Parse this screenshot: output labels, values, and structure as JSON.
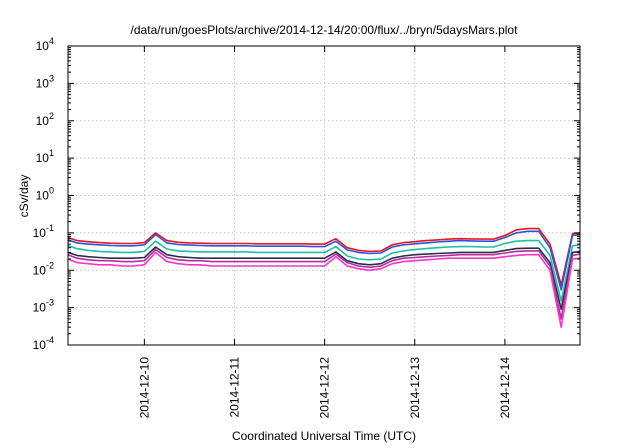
{
  "chart_data": {
    "type": "line",
    "title": "/data/run/goesPlots/archive/2014-12-14/20:00/flux/../bryn/5daysMars.plot",
    "xlabel": "Coordinated Universal Time (UTC)",
    "ylabel": "cSv/day",
    "yscale": "log",
    "ylim": [
      0.0001,
      10000
    ],
    "y_ticks": [
      {
        "base": "10",
        "exp": "-4",
        "value": 0.0001
      },
      {
        "base": "10",
        "exp": "-3",
        "value": 0.001
      },
      {
        "base": "10",
        "exp": "-2",
        "value": 0.01
      },
      {
        "base": "10",
        "exp": "-1",
        "value": 0.1
      },
      {
        "base": "10",
        "exp": "0",
        "value": 1
      },
      {
        "base": "10",
        "exp": "1",
        "value": 10
      },
      {
        "base": "10",
        "exp": "2",
        "value": 100
      },
      {
        "base": "10",
        "exp": "3",
        "value": 1000
      },
      {
        "base": "10",
        "exp": "4",
        "value": 10000
      }
    ],
    "xlim": [
      "2014-12-09 03:40",
      "2014-12-14 20:00"
    ],
    "x_ticks": [
      {
        "label": "2014-12-10",
        "value": "2014-12-10 00:00"
      },
      {
        "label": "2014-12-11",
        "value": "2014-12-11 00:00"
      },
      {
        "label": "2014-12-12",
        "value": "2014-12-12 00:00"
      },
      {
        "label": "2014-12-13",
        "value": "2014-12-13 00:00"
      },
      {
        "label": "2014-12-14",
        "value": "2014-12-14 00:00"
      }
    ],
    "grid": true,
    "legend": "none",
    "x": [
      "2014-12-09 03:40",
      "2014-12-09 06:00",
      "2014-12-09 09:00",
      "2014-12-09 12:00",
      "2014-12-09 15:00",
      "2014-12-09 18:00",
      "2014-12-09 21:00",
      "2014-12-10 00:00",
      "2014-12-10 03:00",
      "2014-12-10 06:00",
      "2014-12-10 09:00",
      "2014-12-10 12:00",
      "2014-12-10 15:00",
      "2014-12-10 18:00",
      "2014-12-10 21:00",
      "2014-12-11 00:00",
      "2014-12-11 03:00",
      "2014-12-11 06:00",
      "2014-12-11 09:00",
      "2014-12-11 12:00",
      "2014-12-11 15:00",
      "2014-12-11 18:00",
      "2014-12-11 21:00",
      "2014-12-12 00:00",
      "2014-12-12 03:00",
      "2014-12-12 06:00",
      "2014-12-12 09:00",
      "2014-12-12 12:00",
      "2014-12-12 15:00",
      "2014-12-12 18:00",
      "2014-12-12 21:00",
      "2014-12-13 00:00",
      "2014-12-13 03:00",
      "2014-12-13 06:00",
      "2014-12-13 09:00",
      "2014-12-13 12:00",
      "2014-12-13 15:00",
      "2014-12-13 18:00",
      "2014-12-13 21:00",
      "2014-12-14 00:00",
      "2014-12-14 03:00",
      "2014-12-14 06:00",
      "2014-12-14 09:00",
      "2014-12-14 12:00",
      "2014-12-14 15:00",
      "2014-12-14 18:00",
      "2014-12-14 20:00"
    ],
    "series": [
      {
        "color": "#e8171d",
        "values": [
          0.075,
          0.062,
          0.058,
          0.055,
          0.053,
          0.052,
          0.052,
          0.055,
          0.1,
          0.062,
          0.056,
          0.054,
          0.053,
          0.052,
          0.052,
          0.052,
          0.052,
          0.051,
          0.051,
          0.051,
          0.051,
          0.051,
          0.05,
          0.05,
          0.07,
          0.04,
          0.034,
          0.032,
          0.033,
          0.048,
          0.055,
          0.058,
          0.062,
          0.065,
          0.068,
          0.07,
          0.069,
          0.068,
          0.068,
          0.085,
          0.12,
          0.13,
          0.13,
          0.05,
          0.004,
          0.095,
          0.1
        ]
      },
      {
        "color": "#2a55e0",
        "values": [
          0.065,
          0.054,
          0.05,
          0.048,
          0.046,
          0.045,
          0.045,
          0.048,
          0.09,
          0.054,
          0.049,
          0.047,
          0.046,
          0.045,
          0.045,
          0.045,
          0.045,
          0.044,
          0.044,
          0.044,
          0.044,
          0.044,
          0.043,
          0.043,
          0.06,
          0.035,
          0.03,
          0.028,
          0.029,
          0.042,
          0.048,
          0.051,
          0.054,
          0.057,
          0.06,
          0.062,
          0.061,
          0.06,
          0.06,
          0.075,
          0.1,
          0.11,
          0.11,
          0.04,
          0.003,
          0.085,
          0.09
        ]
      },
      {
        "color": "#1fbfa6",
        "values": [
          0.045,
          0.038,
          0.034,
          0.032,
          0.031,
          0.03,
          0.03,
          0.032,
          0.06,
          0.037,
          0.033,
          0.032,
          0.031,
          0.031,
          0.031,
          0.031,
          0.031,
          0.03,
          0.03,
          0.03,
          0.03,
          0.03,
          0.03,
          0.03,
          0.043,
          0.024,
          0.02,
          0.019,
          0.02,
          0.029,
          0.033,
          0.036,
          0.038,
          0.04,
          0.042,
          0.043,
          0.043,
          0.042,
          0.042,
          0.052,
          0.06,
          0.062,
          0.062,
          0.025,
          0.0015,
          0.045,
          0.048
        ]
      },
      {
        "color": "#2d2d4a",
        "values": [
          0.03,
          0.025,
          0.023,
          0.022,
          0.021,
          0.021,
          0.021,
          0.022,
          0.042,
          0.026,
          0.023,
          0.022,
          0.021,
          0.021,
          0.021,
          0.021,
          0.021,
          0.021,
          0.021,
          0.021,
          0.021,
          0.021,
          0.021,
          0.021,
          0.031,
          0.018,
          0.015,
          0.014,
          0.015,
          0.021,
          0.024,
          0.026,
          0.027,
          0.028,
          0.029,
          0.03,
          0.03,
          0.03,
          0.03,
          0.034,
          0.038,
          0.039,
          0.039,
          0.016,
          0.0009,
          0.03,
          0.032
        ]
      },
      {
        "color": "#b0309a",
        "values": [
          0.026,
          0.021,
          0.019,
          0.018,
          0.018,
          0.017,
          0.017,
          0.018,
          0.036,
          0.022,
          0.019,
          0.018,
          0.018,
          0.017,
          0.017,
          0.017,
          0.017,
          0.017,
          0.017,
          0.017,
          0.017,
          0.017,
          0.017,
          0.017,
          0.027,
          0.016,
          0.013,
          0.012,
          0.013,
          0.018,
          0.021,
          0.022,
          0.023,
          0.024,
          0.025,
          0.026,
          0.026,
          0.026,
          0.026,
          0.029,
          0.032,
          0.033,
          0.033,
          0.013,
          0.0005,
          0.025,
          0.027
        ]
      },
      {
        "color": "#ff33cc",
        "values": [
          0.02,
          0.016,
          0.015,
          0.014,
          0.014,
          0.013,
          0.013,
          0.014,
          0.03,
          0.017,
          0.015,
          0.014,
          0.014,
          0.013,
          0.013,
          0.013,
          0.013,
          0.013,
          0.013,
          0.013,
          0.013,
          0.013,
          0.013,
          0.013,
          0.023,
          0.013,
          0.011,
          0.01,
          0.011,
          0.015,
          0.017,
          0.018,
          0.019,
          0.02,
          0.021,
          0.021,
          0.021,
          0.021,
          0.021,
          0.023,
          0.025,
          0.026,
          0.026,
          0.01,
          0.0003,
          0.02,
          0.021
        ]
      }
    ]
  }
}
